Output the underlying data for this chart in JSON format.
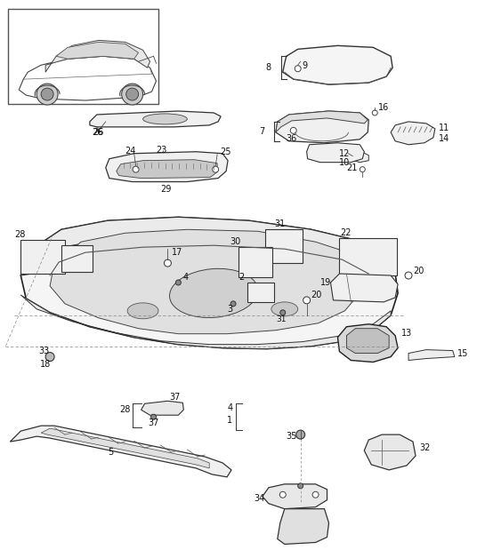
{
  "bg_color": "#ffffff",
  "line_color": "#333333",
  "text_color": "#000000",
  "fig_width": 5.45,
  "fig_height": 6.28,
  "dpi": 100
}
